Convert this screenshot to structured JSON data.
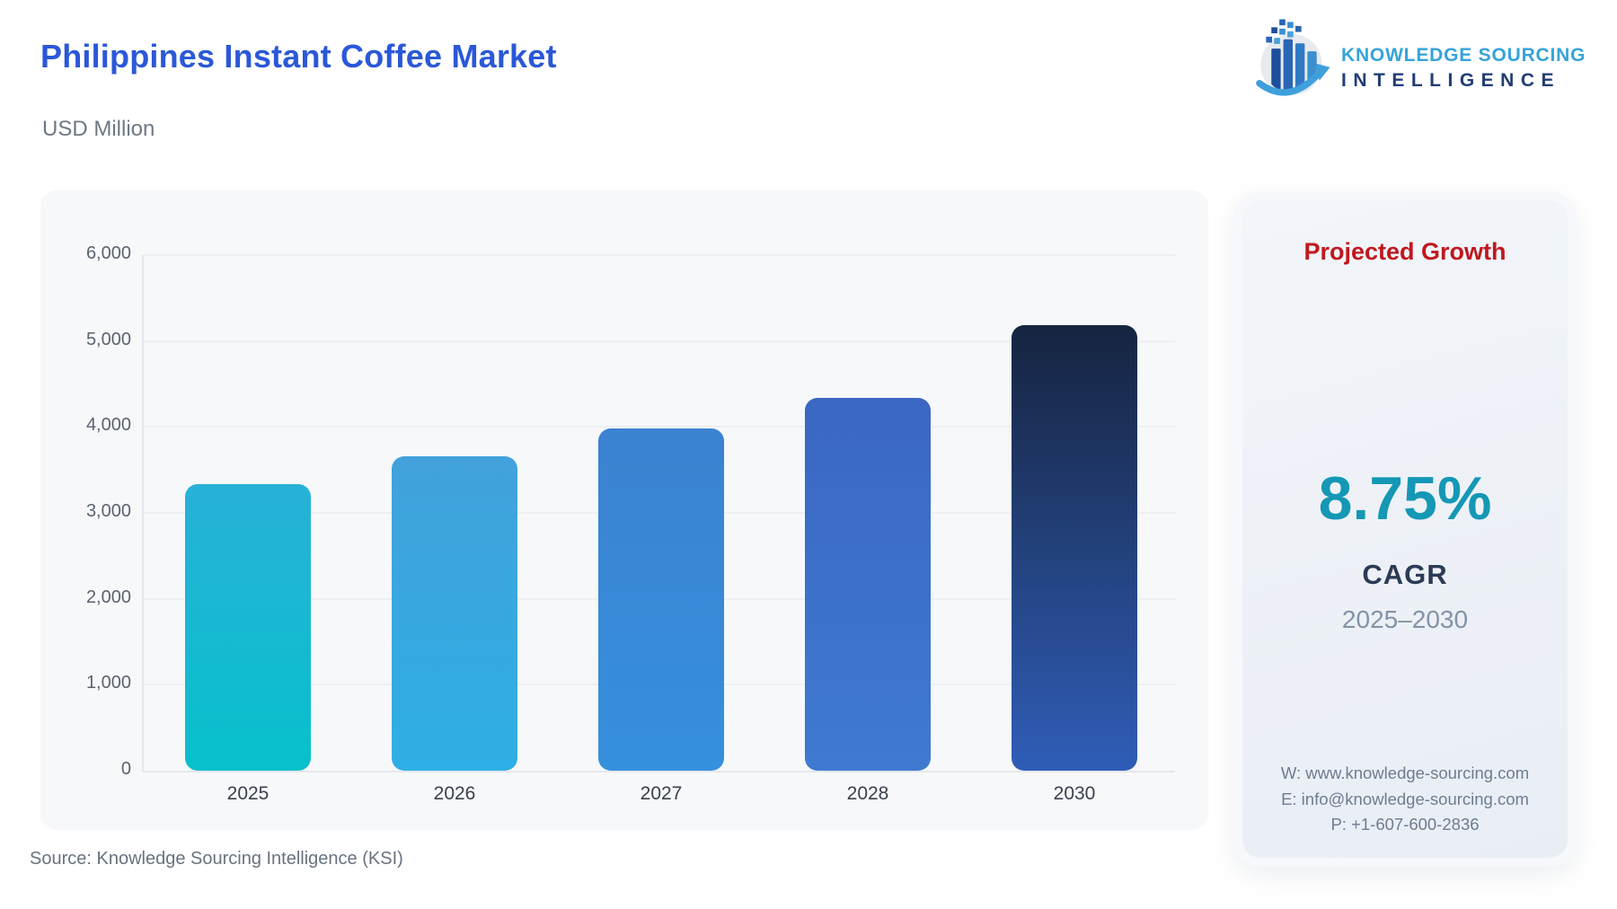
{
  "header": {
    "title": "Philippines Instant Coffee Market",
    "subtitle": "USD Million"
  },
  "logo": {
    "line1": "KNOWLEDGE SOURCING",
    "line2": "INTELLIGENCE"
  },
  "chart_data": {
    "type": "bar",
    "title": "Philippines Instant Coffee Market",
    "ylabel": "USD Million",
    "xlabel": "",
    "categories": [
      "2025",
      "2026",
      "2027",
      "2028",
      "2030"
    ],
    "values": [
      3330,
      3660,
      3980,
      4340,
      5180
    ],
    "ylim": [
      0,
      6000
    ],
    "ytick_step": 1000,
    "ytick_labels": [
      "0",
      "1,000",
      "2,000",
      "3,000",
      "4,000",
      "5,000",
      "6,000"
    ],
    "grid": true,
    "legend": "none",
    "bar_colors": [
      {
        "top": "#28b1d8",
        "bottom": "#07c1cb"
      },
      {
        "top": "#42a1dc",
        "bottom": "#2eafe5"
      },
      {
        "top": "#3b82d1",
        "bottom": "#3590dd"
      },
      {
        "top": "#3a67c3",
        "bottom": "#3f7ad0"
      },
      {
        "top": "#16243f",
        "bottom": "#2f5db7"
      }
    ]
  },
  "side_panel": {
    "title": "Projected Growth",
    "value": "8.75%",
    "value_label": "CAGR",
    "period": "2025–2030",
    "contact": {
      "website": "W: www.knowledge-sourcing.com",
      "email": "E: info@knowledge-sourcing.com",
      "phone": "P: +1-607-600-2836"
    }
  },
  "footer": {
    "source": "Source: Knowledge Sourcing Intelligence (KSI)"
  },
  "colors": {
    "title_blue": "#2b58d8",
    "panel_bg": "#f7f8fa",
    "card_red": "#c0181f",
    "card_teal": "#1598b5",
    "card_navy": "#2c3a55",
    "logo_light_blue": "#35a3da",
    "logo_navy": "#223d72"
  }
}
